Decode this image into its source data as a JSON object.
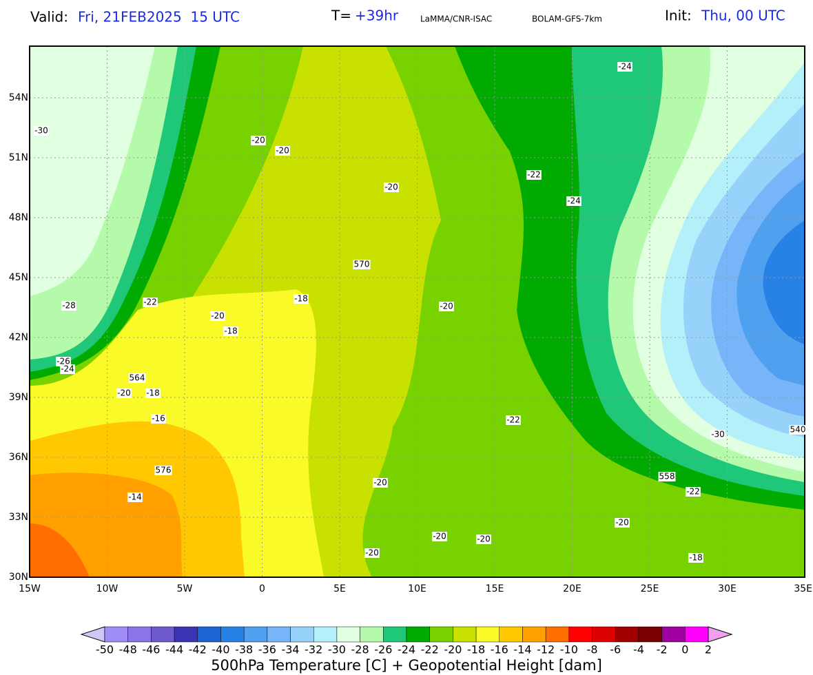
{
  "header": {
    "valid_label": "Valid:",
    "valid_time": "Fri, 21FEB2025  15 UTC",
    "lead_label": "T=",
    "lead": "+39hr",
    "source": "LaMMA/CNR-ISAC",
    "model": "BOLAM-GFS-7km",
    "init_label": "Init:",
    "init_time": "Thu, 00 UTC"
  },
  "map": {
    "lon_ticks": [
      "15W",
      "10W",
      "5W",
      "0",
      "5E",
      "10E",
      "15E",
      "20E",
      "25E",
      "30E",
      "35E"
    ],
    "lat_ticks": [
      "54N",
      "51N",
      "48N",
      "45N",
      "42N",
      "39N",
      "36N",
      "33N",
      "30N"
    ],
    "temperature_labels": [
      "-30",
      "-20",
      "-20",
      "-20",
      "-22",
      "-24",
      "-24",
      "-28",
      "-22",
      "-18",
      "-20",
      "-20",
      "-18",
      "-26",
      "-24",
      "-20",
      "-18",
      "-16",
      "-22",
      "-30",
      "-20",
      "-14",
      "-22",
      "-20",
      "-20",
      "-20",
      "-20",
      "-18"
    ],
    "height_labels": [
      "570",
      "564",
      "576",
      "558",
      "540"
    ]
  },
  "colorbar": {
    "labels": [
      "-50",
      "-48",
      "-46",
      "-44",
      "-42",
      "-40",
      "-38",
      "-36",
      "-34",
      "-32",
      "-30",
      "-28",
      "-26",
      "-24",
      "-22",
      "-20",
      "-18",
      "-16",
      "-14",
      "-12",
      "-10",
      "-8",
      "-6",
      "-4",
      "-2",
      "0",
      "2"
    ],
    "under_color": "#cdc8f8",
    "colors": [
      "#a08cf5",
      "#8a74e8",
      "#6e5acd",
      "#3c32b4",
      "#1e64d2",
      "#2882e6",
      "#50a0f0",
      "#78b4f8",
      "#96d2fa",
      "#b4f0fa",
      "#e1ffe1",
      "#b4faaa",
      "#1ec878",
      "#00aa00",
      "#78d200",
      "#c8e100",
      "#fafa28",
      "#ffc800",
      "#ffa000",
      "#ff6e00",
      "#ff0000",
      "#dc0000",
      "#a00000",
      "#780000",
      "#a000a0",
      "#ff00ff"
    ],
    "over_color": "#f0a0f0",
    "title": "500hPa Temperature [C] + Geopotential Height [dam]"
  }
}
